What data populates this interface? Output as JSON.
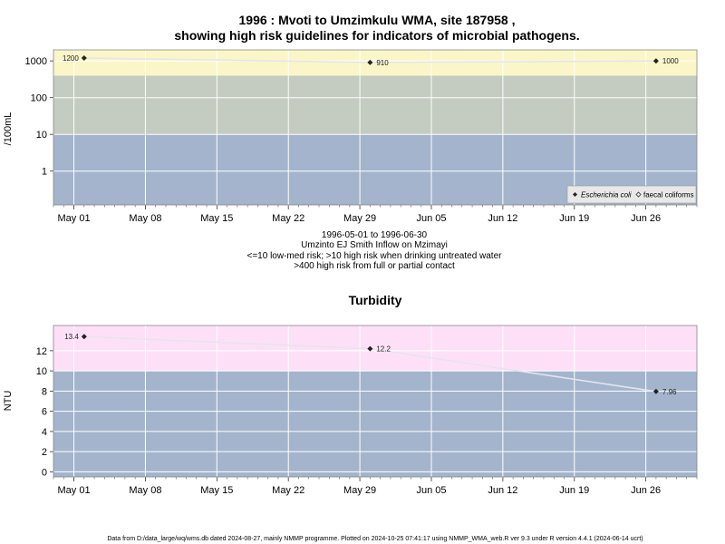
{
  "chart_data": [
    {
      "type": "scatter",
      "title_line1": "1996 : Mvoti to Umzimkulu WMA, site 187958 ,",
      "title_line2": "showing high risk guidelines for indicators of microbial pathogens.",
      "ylabel": "/100mL",
      "y_scale": "log",
      "ylim": [
        0.12,
        2000
      ],
      "y_ticks": [
        {
          "value": 1,
          "label": "1"
        },
        {
          "value": 10,
          "label": "10"
        },
        {
          "value": 100,
          "label": "100"
        },
        {
          "value": 1000,
          "label": "1000"
        }
      ],
      "xlim": [
        "1996-04-29",
        "1996-07-01"
      ],
      "x_ticks": [
        {
          "date": "1996-05-01",
          "label": "May 01"
        },
        {
          "date": "1996-05-08",
          "label": "May 08"
        },
        {
          "date": "1996-05-15",
          "label": "May 15"
        },
        {
          "date": "1996-05-22",
          "label": "May 22"
        },
        {
          "date": "1996-05-29",
          "label": "May 29"
        },
        {
          "date": "1996-06-05",
          "label": "Jun 05"
        },
        {
          "date": "1996-06-12",
          "label": "Jun 12"
        },
        {
          "date": "1996-06-19",
          "label": "Jun 19"
        },
        {
          "date": "1996-06-26",
          "label": "Jun 26"
        }
      ],
      "bands": [
        {
          "from": 0.12,
          "to": 10,
          "color": "#a3b4cc"
        },
        {
          "from": 10,
          "to": 400,
          "color": "#c4cbc0"
        },
        {
          "from": 400,
          "to": 2000,
          "color": "#fbf6c8"
        }
      ],
      "grid": true,
      "series": [
        {
          "name": "Escherichia coli",
          "marker": "diamond",
          "color": "#222222",
          "points": [
            {
              "x": "1996-05-02",
              "y": 1200,
              "label": "1200"
            },
            {
              "x": "1996-05-30",
              "y": 910,
              "label": "910"
            },
            {
              "x": "1996-06-27",
              "y": 1000,
              "label": "1000"
            }
          ]
        }
      ],
      "legend": {
        "position": "bottom-right",
        "entries": [
          "Escherichia coli",
          "faecal coliforms"
        ]
      },
      "caption": [
        "1996-05-01 to 1996-06-30",
        "Umzinto EJ Smith Inflow on Mzimayi",
        "<=10 low-med risk; >10 high risk when drinking untreated water",
        ">400 high risk from full or partial contact"
      ]
    },
    {
      "type": "scatter",
      "title": "Turbidity",
      "ylabel": "NTU",
      "ylim": [
        -0.5,
        14.5
      ],
      "y_ticks": [
        {
          "value": 0,
          "label": "0"
        },
        {
          "value": 2,
          "label": "2"
        },
        {
          "value": 4,
          "label": "4"
        },
        {
          "value": 6,
          "label": "6"
        },
        {
          "value": 8,
          "label": "8"
        },
        {
          "value": 10,
          "label": "10"
        },
        {
          "value": 12,
          "label": "12"
        }
      ],
      "xlim": [
        "1996-04-29",
        "1996-07-01"
      ],
      "x_ticks": [
        {
          "date": "1996-05-01",
          "label": "May 01"
        },
        {
          "date": "1996-05-08",
          "label": "May 08"
        },
        {
          "date": "1996-05-15",
          "label": "May 15"
        },
        {
          "date": "1996-05-22",
          "label": "May 22"
        },
        {
          "date": "1996-05-29",
          "label": "May 29"
        },
        {
          "date": "1996-06-05",
          "label": "Jun 05"
        },
        {
          "date": "1996-06-12",
          "label": "Jun 12"
        },
        {
          "date": "1996-06-19",
          "label": "Jun 19"
        },
        {
          "date": "1996-06-26",
          "label": "Jun 26"
        }
      ],
      "bands": [
        {
          "from": -0.5,
          "to": 10,
          "color": "#a3b4cc"
        },
        {
          "from": 10,
          "to": 14.5,
          "color": "#fde0f7"
        }
      ],
      "grid": true,
      "series": [
        {
          "marker": "diamond",
          "color": "#222222",
          "points": [
            {
              "x": "1996-05-02",
              "y": 13.4,
              "label": "13.4"
            },
            {
              "x": "1996-05-30",
              "y": 12.2,
              "label": "12.2"
            },
            {
              "x": "1996-06-27",
              "y": 7.96,
              "label": "7.96"
            }
          ]
        }
      ]
    }
  ],
  "footer": "Data from D:/data_large/wq/wms.db dated 2024-08-27, mainly NMMP programme. Plotted on 2024-10-25 07:41:17 using NMMP_WMA_web.R ver 9.3 under R version 4.4.1 (2024-06-14 ucrt)"
}
